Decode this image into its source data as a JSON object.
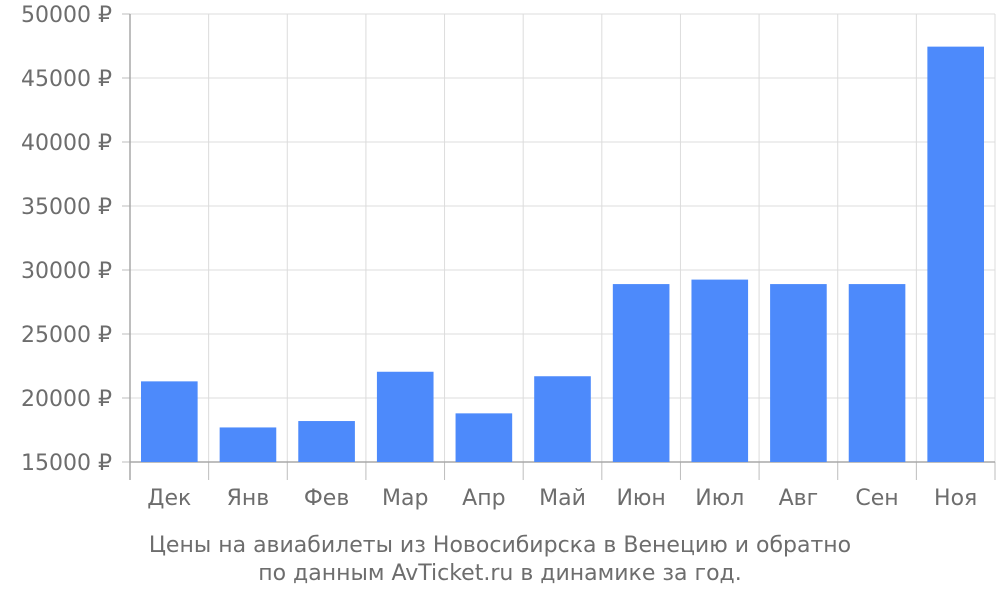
{
  "chart_data": {
    "type": "bar",
    "categories": [
      "Дек",
      "Янв",
      "Фев",
      "Мар",
      "Апр",
      "Май",
      "Июн",
      "Июл",
      "Авг",
      "Сен",
      "Ноя"
    ],
    "series": [
      {
        "values": [
          21300,
          17700,
          18200,
          22050,
          18800,
          21700,
          28900,
          29250,
          28900,
          28900,
          47450
        ]
      }
    ],
    "y_ticks": [
      "15000 ₽",
      "20000 ₽",
      "25000 ₽",
      "30000 ₽",
      "35000 ₽",
      "40000 ₽",
      "45000 ₽",
      "50000 ₽"
    ],
    "ylim": [
      15000,
      50000
    ],
    "y_step": 5000,
    "bar_color": "#4d8afb",
    "grid": true,
    "caption_line1": "Цены на авиабилеты из Новосибирска в Венецию и обратно",
    "caption_line2": "по данным AvTicket.ru в динамике за год."
  }
}
